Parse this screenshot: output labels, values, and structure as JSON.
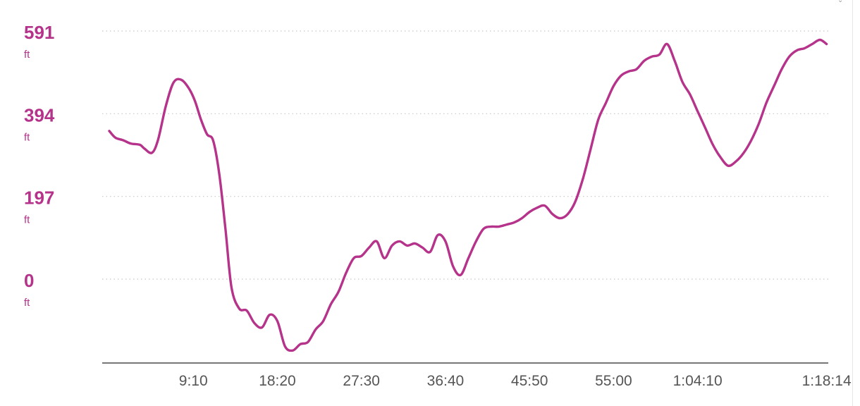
{
  "chart_data": {
    "type": "line",
    "title": "",
    "xlabel": "",
    "ylabel": "",
    "y_unit": "ft",
    "yticks": [
      {
        "value": 591,
        "label": "591"
      },
      {
        "value": 394,
        "label": "394"
      },
      {
        "value": 197,
        "label": "197"
      },
      {
        "value": 0,
        "label": "0"
      }
    ],
    "ylim": [
      -197,
      625
    ],
    "xlim": [
      0,
      4705
    ],
    "xticks": [
      {
        "value": 550,
        "label": "9:10"
      },
      {
        "value": 1100,
        "label": "18:20"
      },
      {
        "value": 1650,
        "label": "27:30"
      },
      {
        "value": 2200,
        "label": "36:40"
      },
      {
        "value": 2750,
        "label": "45:50"
      },
      {
        "value": 3300,
        "label": "55:00"
      },
      {
        "value": 3850,
        "label": "1:04:10"
      },
      {
        "value": 4694,
        "label": "1:18:14"
      }
    ],
    "grid": true,
    "line_color": "#b5338a",
    "label_color": "#b5338a",
    "series": [
      {
        "x": [
          0,
          40,
          90,
          140,
          200,
          230,
          280,
          320,
          370,
          420,
          470,
          520,
          560,
          600,
          640,
          680,
          720,
          760,
          800,
          850,
          900,
          950,
          1000,
          1050,
          1100,
          1150,
          1200,
          1250,
          1300,
          1350,
          1400,
          1450,
          1500,
          1550,
          1600,
          1650,
          1700,
          1750,
          1800,
          1850,
          1900,
          1950,
          2000,
          2050,
          2100,
          2150,
          2200,
          2250,
          2300,
          2350,
          2400,
          2450,
          2500,
          2550,
          2600,
          2650,
          2700,
          2750,
          2800,
          2850,
          2900,
          2950,
          3000,
          3050,
          3100,
          3150,
          3200,
          3250,
          3300,
          3350,
          3400,
          3450,
          3500,
          3550,
          3600,
          3650,
          3700,
          3750,
          3800,
          3850,
          3900,
          3950,
          4000,
          4050,
          4100,
          4150,
          4200,
          4250,
          4300,
          4350,
          4400,
          4450,
          4500,
          4550,
          4600,
          4650,
          4694
        ],
        "y": [
          353,
          337,
          331,
          323,
          320,
          311,
          301,
          333,
          412,
          468,
          475,
          455,
          425,
          380,
          345,
          330,
          250,
          120,
          -20,
          -70,
          -75,
          -105,
          -115,
          -85,
          -100,
          -160,
          -170,
          -155,
          -150,
          -120,
          -100,
          -60,
          -30,
          15,
          50,
          55,
          75,
          90,
          50,
          80,
          90,
          80,
          85,
          75,
          65,
          105,
          90,
          30,
          10,
          50,
          90,
          120,
          125,
          125,
          130,
          135,
          145,
          160,
          170,
          175,
          155,
          145,
          155,
          185,
          240,
          310,
          380,
          420,
          460,
          485,
          495,
          500,
          520,
          530,
          535,
          560,
          520,
          470,
          440,
          400,
          360,
          320,
          290,
          270,
          280,
          300,
          330,
          370,
          420,
          460,
          500,
          530,
          545,
          550,
          560,
          570,
          560
        ]
      }
    ]
  }
}
